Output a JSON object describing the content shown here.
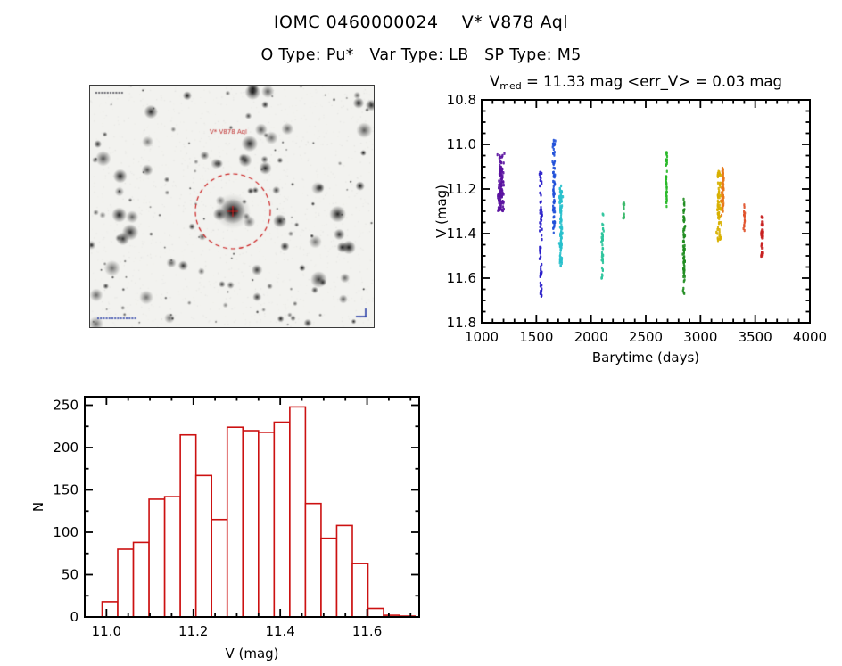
{
  "header": {
    "title": "IOMC 0460000024    V* V878 Aql",
    "subtitle": "O Type: Pu*   Var Type: LB   SP Type: M5"
  },
  "finder": {
    "target_label": "V* V878 Aql",
    "circle_color": "#cc2222"
  },
  "chart_data": [
    {
      "id": "lightcurve",
      "type": "scatter",
      "title_prefix": "V",
      "title_sub": "med",
      "title_rest": " = 11.33 mag <err_V> = 0.03 mag",
      "xlabel": "Barytime (days)",
      "ylabel": "V (mag)",
      "xlim": [
        1000,
        4000
      ],
      "ylim": [
        10.8,
        11.8
      ],
      "y_inverted": true,
      "xticks": [
        1000,
        1500,
        2000,
        2500,
        3000,
        3500,
        4000
      ],
      "yticks": [
        10.8,
        11.0,
        11.2,
        11.4,
        11.6,
        11.8
      ],
      "x_minor_step": 100,
      "y_minor_step": 0.05,
      "legend": "none",
      "grid": false,
      "clusters": [
        {
          "barytime": 1175,
          "spread_days": 40,
          "v_range": [
            11.04,
            11.3
          ],
          "color": "#5a12a0",
          "n_points": 110
        },
        {
          "barytime": 1540,
          "spread_days": 18,
          "v_range": [
            11.12,
            11.7
          ],
          "color": "#2418c8",
          "n_points": 60
        },
        {
          "barytime": 1660,
          "spread_days": 18,
          "v_range": [
            10.98,
            11.4
          ],
          "color": "#2050d8",
          "n_points": 70
        },
        {
          "barytime": 1725,
          "spread_days": 20,
          "v_range": [
            11.18,
            11.55
          ],
          "color": "#28c0cc",
          "n_points": 110
        },
        {
          "barytime": 2105,
          "spread_days": 14,
          "v_range": [
            11.31,
            11.6
          ],
          "color": "#2cc49c",
          "n_points": 45
        },
        {
          "barytime": 2300,
          "spread_days": 10,
          "v_range": [
            11.26,
            11.36
          ],
          "color": "#38b868",
          "n_points": 14
        },
        {
          "barytime": 2690,
          "spread_days": 10,
          "v_range": [
            11.03,
            11.28
          ],
          "color": "#28b828",
          "n_points": 40
        },
        {
          "barytime": 2850,
          "spread_days": 14,
          "v_range": [
            11.24,
            11.67
          ],
          "color": "#1f8c1f",
          "n_points": 70
        },
        {
          "barytime": 3170,
          "spread_days": 30,
          "v_range": [
            11.12,
            11.44
          ],
          "color": "#d8b000",
          "n_points": 80
        },
        {
          "barytime": 3205,
          "spread_days": 18,
          "v_range": [
            11.1,
            11.32
          ],
          "color": "#e87818",
          "n_points": 60
        },
        {
          "barytime": 3400,
          "spread_days": 10,
          "v_range": [
            11.27,
            11.4
          ],
          "color": "#e05028",
          "n_points": 16
        },
        {
          "barytime": 3560,
          "spread_days": 10,
          "v_range": [
            11.32,
            11.52
          ],
          "color": "#c82020",
          "n_points": 30
        }
      ]
    },
    {
      "id": "histogram",
      "type": "bar",
      "xlabel": "V (mag)",
      "ylabel": "N",
      "xlim": [
        10.95,
        11.72
      ],
      "ylim": [
        0,
        260
      ],
      "xticks": [
        11.0,
        11.2,
        11.4,
        11.6
      ],
      "yticks": [
        0,
        50,
        100,
        150,
        200,
        250
      ],
      "x_minor_step": 0.05,
      "y_minor_step": 25,
      "bin_start": 10.99,
      "bin_width": 0.036,
      "counts": [
        18,
        80,
        88,
        139,
        142,
        215,
        167,
        115,
        224,
        220,
        218,
        230,
        248,
        134,
        93,
        108,
        63,
        10,
        2,
        1
      ],
      "bar_color": "#cc1111",
      "bar_fill": "#ffffff",
      "grid": false
    }
  ],
  "colors": {
    "axis": "#000000",
    "histogram_outline": "#cc1111",
    "finder_marker": "#cc2222"
  }
}
